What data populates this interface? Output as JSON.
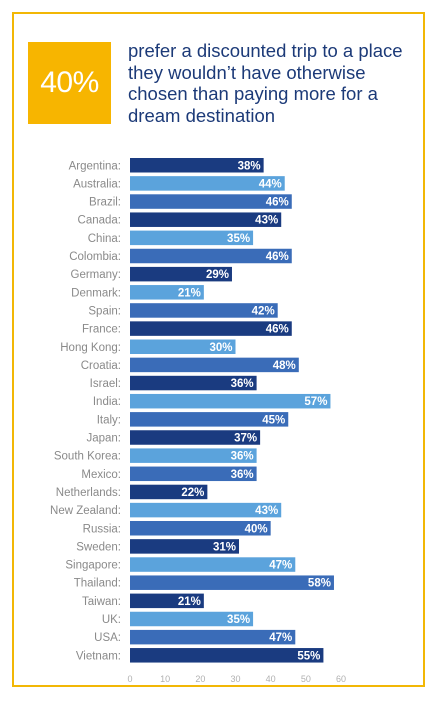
{
  "stat": {
    "value": "40%"
  },
  "headline": "prefer a discounted trip to a place they wouldn’t have otherwise chosen than paying more for a dream destination",
  "colors": {
    "border": "#f2b705",
    "stat_bg": "#f7b500",
    "headline": "#1c3a78",
    "dark": "#1a3b80",
    "mid": "#3a6cb8",
    "light": "#5ba3dc"
  },
  "chart_data": {
    "type": "bar",
    "orientation": "horizontal",
    "categories": [
      "Argentina:",
      "Australia:",
      "Brazil:",
      "Canada:",
      "China:",
      "Colombia:",
      "Germany:",
      "Denmark:",
      "Spain:",
      "France:",
      "Hong Kong:",
      "Croatia:",
      "Israel:",
      "India:",
      "Italy:",
      "Japan:",
      "South Korea:",
      "Mexico:",
      "Netherlands:",
      "New Zealand:",
      "Russia:",
      "Sweden:",
      "Singapore:",
      "Thailand:",
      "Taiwan:",
      "UK:",
      "USA:",
      "Vietnam:"
    ],
    "values": [
      38,
      44,
      46,
      43,
      35,
      46,
      29,
      21,
      42,
      46,
      30,
      48,
      36,
      57,
      45,
      37,
      36,
      36,
      22,
      43,
      40,
      31,
      47,
      58,
      21,
      35,
      47,
      55
    ],
    "value_labels": [
      "38%",
      "44%",
      "46%",
      "43%",
      "35%",
      "46%",
      "29%",
      "21%",
      "42%",
      "46%",
      "30%",
      "48%",
      "36%",
      "57%",
      "45%",
      "37%",
      "36%",
      "36%",
      "22%",
      "43%",
      "40%",
      "31%",
      "47%",
      "58%",
      "21%",
      "35%",
      "47%",
      "55%"
    ],
    "bar_shades": [
      "dark",
      "light",
      "mid",
      "dark",
      "light",
      "mid",
      "dark",
      "light",
      "mid",
      "dark",
      "light",
      "mid",
      "dark",
      "light",
      "mid",
      "dark",
      "light",
      "mid",
      "dark",
      "light",
      "mid",
      "dark",
      "light",
      "mid",
      "dark",
      "light",
      "mid",
      "dark"
    ],
    "xticks": [
      "0",
      "10",
      "20",
      "30",
      "40",
      "50",
      "60"
    ],
    "xlim": [
      0,
      60
    ],
    "grid": false,
    "legend": "none"
  }
}
